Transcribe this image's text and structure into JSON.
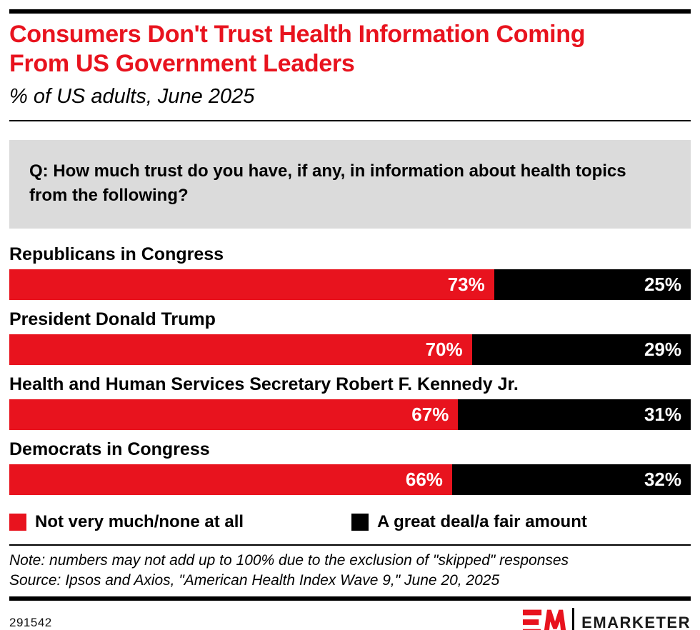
{
  "colors": {
    "brand_red": "#e8131e",
    "series_black": "#000000",
    "question_bg": "#dbdbdb"
  },
  "header": {
    "title_lines": [
      "Consumers Don't Trust Health Information Coming",
      "From US Government Leaders"
    ],
    "subtitle": "% of US adults, June 2025"
  },
  "question": "Q: How much trust do you have, if any, in information about health topics from the following?",
  "chart_data": {
    "type": "bar",
    "subtype": "horizontal-stacked",
    "title": "Consumers Don't Trust Health Information Coming From US Government Leaders",
    "subtitle": "% of US adults, June 2025",
    "categories": [
      "Republicans in Congress",
      "President Donald Trump",
      "Health and Human Services Secretary Robert F. Kennedy Jr.",
      "Democrats in Congress"
    ],
    "series": [
      {
        "name": "Not very much/none at all",
        "color": "#e8131e",
        "values": [
          73,
          70,
          67,
          66
        ]
      },
      {
        "name": "A great deal/a fair amount",
        "color": "#000000",
        "values": [
          25,
          29,
          31,
          32
        ]
      }
    ],
    "value_suffix": "%",
    "layout_hints": {
      "bar_width": "full-row, segments proportional to row sum",
      "value_labels": "white, right-aligned inside each segment",
      "legend_position": "below bars"
    }
  },
  "legend": [
    {
      "label": "Not very much/none at all",
      "color": "#e8131e"
    },
    {
      "label": "A great deal/a fair amount",
      "color": "#000000"
    }
  ],
  "footnotes": {
    "note": "Note: numbers may not add up to 100% due to the exclusion of \"skipped\" responses",
    "source": "Source: Ipsos and Axios, \"American Health Index Wave 9,\" June 20, 2025"
  },
  "footer": {
    "chart_id": "291542",
    "brand": "EMARKETER"
  }
}
